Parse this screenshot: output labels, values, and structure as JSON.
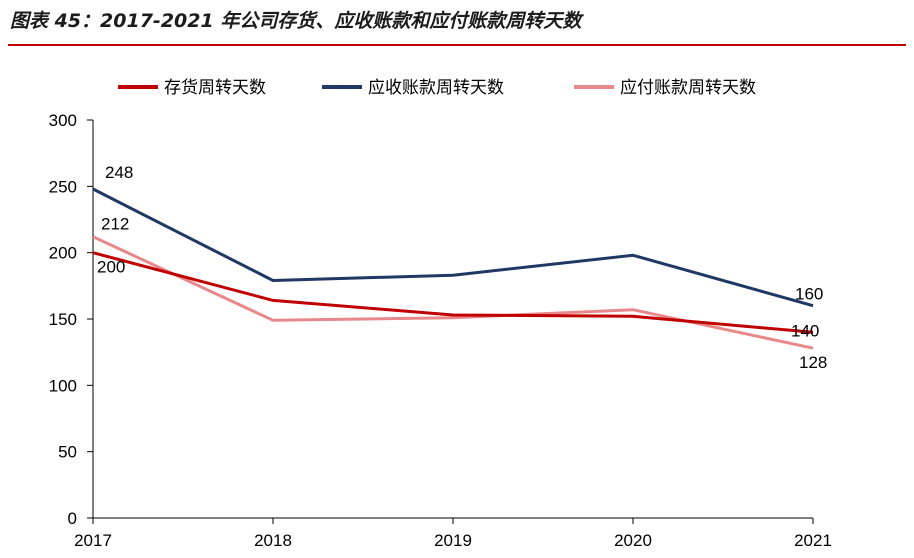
{
  "title": "图表 45：2017-2021 年公司存货、应收账款和应付账款周转天数",
  "chart_data": {
    "type": "line",
    "x": [
      "2017",
      "2018",
      "2019",
      "2020",
      "2021"
    ],
    "ylim": [
      0,
      300
    ],
    "yticks": [
      0,
      50,
      100,
      150,
      200,
      250,
      300
    ],
    "legend_position": "top",
    "grid": false,
    "series": [
      {
        "name": "存货周转天数",
        "color": "#c00000",
        "values": [
          200,
          164,
          153,
          152,
          140
        ],
        "labels": {
          "0": "200",
          "4": "140"
        }
      },
      {
        "name": "应收账款周转天数",
        "color": "#1f3864",
        "values": [
          248,
          179,
          183,
          198,
          160
        ],
        "labels": {
          "0": "248",
          "4": "160"
        }
      },
      {
        "name": "应付账款周转天数",
        "color": "#e8888a",
        "values": [
          212,
          149,
          151,
          157,
          128
        ],
        "labels": {
          "0": "212",
          "4": "128"
        }
      }
    ]
  }
}
